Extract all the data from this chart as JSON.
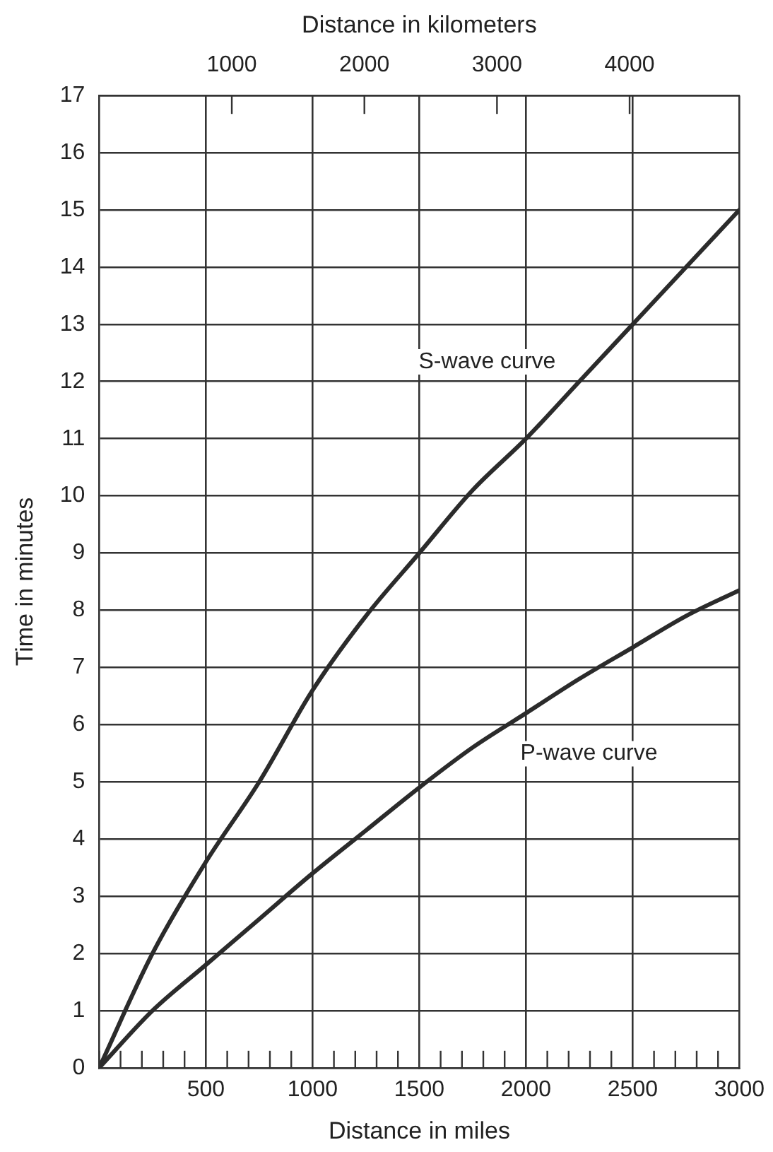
{
  "chart_data": {
    "type": "line",
    "xlabel": "Distance in miles",
    "ylabel": "Time in minutes",
    "x2label": "Distance in kilometers",
    "xlim": [
      0,
      3000
    ],
    "xticks": [
      {
        "value": 0,
        "label": null
      },
      {
        "value": 100,
        "label": null
      },
      {
        "value": 200,
        "label": null
      },
      {
        "value": 300,
        "label": null
      },
      {
        "value": 400,
        "label": null
      },
      500,
      {
        "value": 600,
        "label": null
      },
      {
        "value": 700,
        "label": null
      },
      {
        "value": 800,
        "label": null
      },
      {
        "value": 900,
        "label": null
      },
      1000,
      {
        "value": 1100,
        "label": null
      },
      {
        "value": 1200,
        "label": null
      },
      {
        "value": 1300,
        "label": null
      },
      {
        "value": 1400,
        "label": null
      },
      1500,
      {
        "value": 1600,
        "label": null
      },
      {
        "value": 1700,
        "label": null
      },
      {
        "value": 1800,
        "label": null
      },
      {
        "value": 1900,
        "label": null
      },
      2000,
      {
        "value": 2100,
        "label": null
      },
      {
        "value": 2200,
        "label": null
      },
      {
        "value": 2300,
        "label": null
      },
      {
        "value": 2400,
        "label": null
      },
      2500,
      {
        "value": 2600,
        "label": null
      },
      {
        "value": 2700,
        "label": null
      },
      {
        "value": 2800,
        "label": null
      },
      {
        "value": 2900,
        "label": null
      },
      3000
    ],
    "x2lim": [
      0,
      4828
    ],
    "x2ticks": [
      1000,
      2000,
      3000,
      4000
    ],
    "ylim": [
      0,
      17
    ],
    "yticks": [
      0,
      1,
      2,
      3,
      4,
      5,
      6,
      7,
      8,
      9,
      10,
      11,
      12,
      13,
      14,
      15,
      16,
      17
    ],
    "grid": true,
    "legend": false,
    "marker": "none",
    "line_style": "solid",
    "x": [
      0,
      250,
      500,
      750,
      1000,
      1250,
      1500,
      1750,
      2000,
      2250,
      2500,
      2750,
      3000
    ],
    "series": [
      {
        "color": "#2b2b2b",
        "values": [
          0,
          2.0,
          3.6,
          5.0,
          6.6,
          7.9,
          9.0,
          10.1,
          11.0,
          12.0,
          13.0,
          14.0,
          15.0
        ]
      },
      {
        "color": "#2b2b2b",
        "values": [
          0,
          1.0,
          1.8,
          2.6,
          3.4,
          4.15,
          4.9,
          5.6,
          6.2,
          6.8,
          7.35,
          7.9,
          8.35
        ]
      }
    ],
    "annotations": [
      "S-wave curve",
      "P-wave curve"
    ]
  }
}
